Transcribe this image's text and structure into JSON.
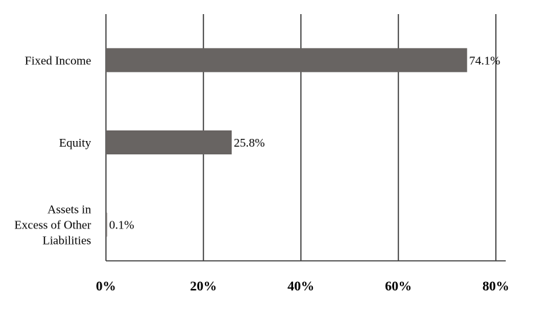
{
  "chart_data": {
    "type": "bar",
    "orientation": "horizontal",
    "categories": [
      [
        "Fixed Income"
      ],
      [
        "Equity"
      ],
      [
        "Assets in",
        "Excess of Other",
        "Liabilities"
      ]
    ],
    "values": [
      74.1,
      25.8,
      0.1
    ],
    "data_labels": [
      "74.1%",
      "25.8%",
      "0.1%"
    ],
    "x_ticks": [
      0,
      20,
      40,
      60,
      80
    ],
    "x_tick_labels": [
      "0%",
      "20%",
      "40%",
      "60%",
      "80%"
    ],
    "xlim": [
      0,
      80
    ],
    "grid": "vertical",
    "bar_color": "#686462",
    "grid_color": "#3a3a3a",
    "text_color": "#000000"
  }
}
